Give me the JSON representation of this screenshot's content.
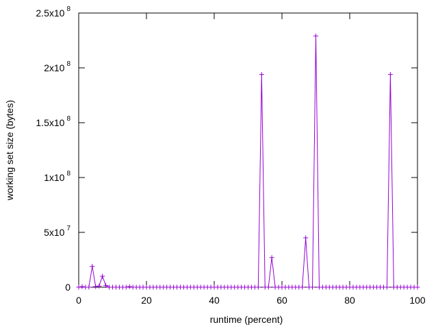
{
  "chart_data": {
    "type": "line",
    "xlabel": "runtime (percent)",
    "ylabel": "working set size (bytes)",
    "xlim": [
      0,
      100
    ],
    "ylim": [
      0,
      250000000
    ],
    "grid": false,
    "x_ticks": [
      {
        "value": 0,
        "label": "0"
      },
      {
        "value": 20,
        "label": "20"
      },
      {
        "value": 40,
        "label": "40"
      },
      {
        "value": 60,
        "label": "60"
      },
      {
        "value": 80,
        "label": "80"
      },
      {
        "value": 100,
        "label": "100"
      }
    ],
    "y_ticks": [
      {
        "value": 0,
        "mant": "0",
        "exp": ""
      },
      {
        "value": 50000000,
        "mant": "5x10",
        "exp": "7"
      },
      {
        "value": 100000000,
        "mant": "1x10",
        "exp": "8"
      },
      {
        "value": 150000000,
        "mant": "1.5x10",
        "exp": "8"
      },
      {
        "value": 200000000,
        "mant": "2x10",
        "exp": "8"
      },
      {
        "value": 250000000,
        "mant": "2.5x10",
        "exp": "8"
      }
    ],
    "series": [
      {
        "color": "#9400d3",
        "marker": "plus",
        "points": [
          [
            0,
            0
          ],
          [
            1,
            500000
          ],
          [
            2,
            0
          ],
          [
            3,
            0
          ],
          [
            4,
            19000000
          ],
          [
            5,
            500000
          ],
          [
            6,
            1000000
          ],
          [
            7,
            10000000
          ],
          [
            8,
            1500000
          ],
          [
            9,
            0
          ],
          [
            10,
            0
          ],
          [
            11,
            0
          ],
          [
            12,
            0
          ],
          [
            13,
            0
          ],
          [
            14,
            0
          ],
          [
            15,
            500000
          ],
          [
            16,
            0
          ],
          [
            17,
            0
          ],
          [
            18,
            0
          ],
          [
            19,
            0
          ],
          [
            20,
            0
          ],
          [
            21,
            0
          ],
          [
            22,
            0
          ],
          [
            23,
            0
          ],
          [
            24,
            0
          ],
          [
            25,
            0
          ],
          [
            26,
            0
          ],
          [
            27,
            0
          ],
          [
            28,
            0
          ],
          [
            29,
            0
          ],
          [
            30,
            0
          ],
          [
            31,
            0
          ],
          [
            32,
            0
          ],
          [
            33,
            0
          ],
          [
            34,
            0
          ],
          [
            35,
            0
          ],
          [
            36,
            0
          ],
          [
            37,
            0
          ],
          [
            38,
            0
          ],
          [
            39,
            0
          ],
          [
            40,
            0
          ],
          [
            41,
            0
          ],
          [
            42,
            0
          ],
          [
            43,
            0
          ],
          [
            44,
            0
          ],
          [
            45,
            0
          ],
          [
            46,
            0
          ],
          [
            47,
            0
          ],
          [
            48,
            0
          ],
          [
            49,
            0
          ],
          [
            50,
            0
          ],
          [
            51,
            0
          ],
          [
            52,
            0
          ],
          [
            53,
            0
          ],
          [
            54,
            194000000
          ],
          [
            55,
            0
          ],
          [
            56,
            0
          ],
          [
            57,
            27000000
          ],
          [
            58,
            0
          ],
          [
            59,
            0
          ],
          [
            60,
            0
          ],
          [
            61,
            0
          ],
          [
            62,
            0
          ],
          [
            63,
            0
          ],
          [
            64,
            0
          ],
          [
            65,
            0
          ],
          [
            66,
            0
          ],
          [
            67,
            45000000
          ],
          [
            68,
            0
          ],
          [
            69,
            0
          ],
          [
            70,
            229000000
          ],
          [
            71,
            0
          ],
          [
            72,
            0
          ],
          [
            73,
            0
          ],
          [
            74,
            0
          ],
          [
            75,
            0
          ],
          [
            76,
            0
          ],
          [
            77,
            0
          ],
          [
            78,
            0
          ],
          [
            79,
            0
          ],
          [
            80,
            0
          ],
          [
            81,
            0
          ],
          [
            82,
            0
          ],
          [
            83,
            0
          ],
          [
            84,
            0
          ],
          [
            85,
            0
          ],
          [
            86,
            0
          ],
          [
            87,
            0
          ],
          [
            88,
            0
          ],
          [
            89,
            0
          ],
          [
            90,
            0
          ],
          [
            91,
            0
          ],
          [
            92,
            194000000
          ],
          [
            93,
            0
          ],
          [
            94,
            0
          ],
          [
            95,
            0
          ],
          [
            96,
            0
          ],
          [
            97,
            0
          ],
          [
            98,
            0
          ],
          [
            99,
            0
          ],
          [
            100,
            0
          ]
        ]
      }
    ]
  }
}
